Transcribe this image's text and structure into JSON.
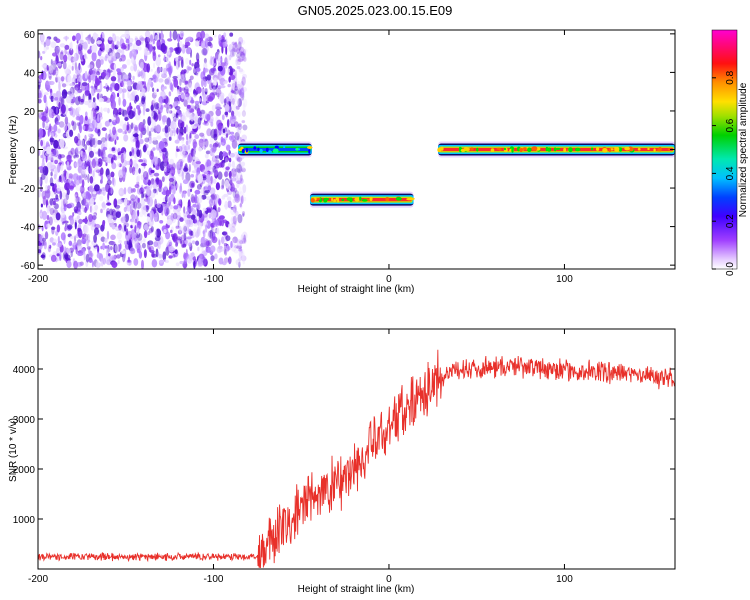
{
  "figure_title": "GN05.2025.023.00.15.E09",
  "chart_data": [
    {
      "type": "heatmap",
      "title": "GN05.2025.023.00.15.E09",
      "xlabel": "Height of straight line (km)",
      "ylabel": "Frequency (Hz)",
      "xlim": [
        -200,
        163
      ],
      "ylim": [
        -62,
        62
      ],
      "xticks": [
        -200,
        -100,
        0,
        100
      ],
      "xtick_labels": [
        "-200",
        "-100",
        "0",
        "100"
      ],
      "yticks": [
        -60,
        -40,
        -20,
        0,
        20,
        40,
        60
      ],
      "ytick_labels": [
        "-60",
        "-40",
        "-20",
        "0",
        "20",
        "40",
        "60"
      ],
      "grid": false,
      "colorbar": {
        "label": "Normalized spectral amplitude",
        "range": [
          0.0,
          1.0
        ],
        "ticks": [
          0.0,
          0.2,
          0.4,
          0.6,
          0.8
        ],
        "tick_labels": [
          "0.0",
          "0.2",
          "0.4",
          "0.6",
          "0.8"
        ],
        "colormap": [
          "#ffffff",
          "#d9b3ff",
          "#8a2be2",
          "#0000ff",
          "#00bfff",
          "#00e5a0",
          "#00d000",
          "#c8e000",
          "#ffd000",
          "#ff8000",
          "#ff0000",
          "#ff00cc"
        ]
      },
      "regions": [
        {
          "name": "noise",
          "x_range": [
            -200,
            -82
          ],
          "freq_range": [
            -60,
            60
          ],
          "amplitude": 0.1
        },
        {
          "name": "segment",
          "x_range": [
            -86,
            -44
          ],
          "freq_center": 0,
          "amplitude": 0.35
        },
        {
          "name": "segment",
          "x_range": [
            -45,
            14
          ],
          "freq_center": -26,
          "amplitude": 0.9
        },
        {
          "name": "segment",
          "x_range": [
            28,
            163
          ],
          "freq_center": 0,
          "amplitude": 0.95
        }
      ]
    },
    {
      "type": "line",
      "xlabel": "Height of straight line (km)",
      "ylabel": "SNR (10 * v/v)",
      "xlim": [
        -200,
        163
      ],
      "ylim": [
        0,
        4800
      ],
      "xticks": [
        -200,
        -100,
        0,
        100
      ],
      "xtick_labels": [
        "-200",
        "-100",
        "0",
        "100"
      ],
      "yticks": [
        1000,
        2000,
        3000,
        4000
      ],
      "ytick_labels": [
        "1000",
        "2000",
        "3000",
        "4000"
      ],
      "grid": false,
      "line_color": "#e8302a",
      "series": [
        {
          "x": [
            -200,
            -150,
            -100,
            -75,
            -60,
            -45,
            -30,
            -20,
            -10,
            0,
            10,
            20,
            30,
            40,
            60,
            80,
            100,
            120,
            140,
            163
          ],
          "values": [
            250,
            240,
            250,
            250,
            800,
            1400,
            1700,
            2000,
            2400,
            2850,
            3300,
            3600,
            3850,
            4000,
            4050,
            4050,
            3950,
            3950,
            3900,
            3800
          ]
        }
      ]
    }
  ]
}
